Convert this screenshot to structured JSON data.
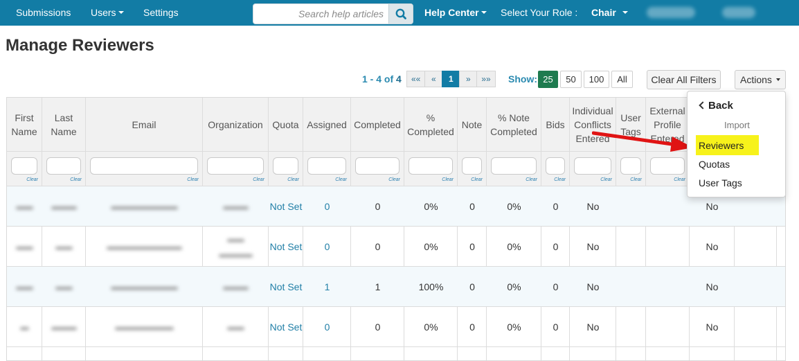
{
  "nav": {
    "submissions": "Submissions",
    "users": "Users",
    "settings": "Settings",
    "search_placeholder": "Search help articles",
    "help_center": "Help Center",
    "role_label": "Select Your Role :",
    "role_value": "Chair"
  },
  "page_title": "Manage Reviewers",
  "pagination": {
    "range": "1 - 4 of ",
    "total": "4",
    "first": "««",
    "prev": "«",
    "current": "1",
    "next": "»",
    "last": "»»"
  },
  "show": {
    "label": "Show:",
    "options": [
      "25",
      "50",
      "100",
      "All"
    ],
    "selected": "25"
  },
  "clear_filters": "Clear All Filters",
  "actions": "Actions",
  "dropdown": {
    "back": "Back",
    "section": "Import",
    "items": [
      "Reviewers",
      "Quotas",
      "User Tags"
    ],
    "highlighted": "Reviewers",
    "highlight_color": "#f7f21b"
  },
  "table": {
    "clear_label": "Clear",
    "headers": [
      "First Name",
      "Last Name",
      "Email",
      "Organization",
      "Quota",
      "Assigned",
      "Completed",
      "% Completed",
      "Note",
      "% Note Completed",
      "Bids",
      "Individual Conflicts Entered",
      "User Tags",
      "External Profile Entered"
    ],
    "rows": [
      {
        "quota": "Not Set",
        "assigned": "0",
        "completed": "0",
        "pct": "0%",
        "note": "0",
        "note_pct": "0%",
        "bids": "0",
        "conflicts": "No",
        "profile": "No"
      },
      {
        "quota": "Not Set",
        "assigned": "0",
        "completed": "0",
        "pct": "0%",
        "note": "0",
        "note_pct": "0%",
        "bids": "0",
        "conflicts": "No",
        "profile": "No"
      },
      {
        "quota": "Not Set",
        "assigned": "1",
        "completed": "1",
        "pct": "100%",
        "note": "0",
        "note_pct": "0%",
        "bids": "0",
        "conflicts": "No",
        "profile": "No"
      },
      {
        "quota": "Not Set",
        "assigned": "0",
        "completed": "0",
        "pct": "0%",
        "note": "0",
        "note_pct": "0%",
        "bids": "0",
        "conflicts": "No",
        "profile": "No"
      }
    ]
  },
  "colors": {
    "nav_bg": "#127ca5",
    "active_page": "#127ca5",
    "show_active": "#1e7b4f",
    "link": "#217fa7",
    "arrow": "#e01414"
  }
}
